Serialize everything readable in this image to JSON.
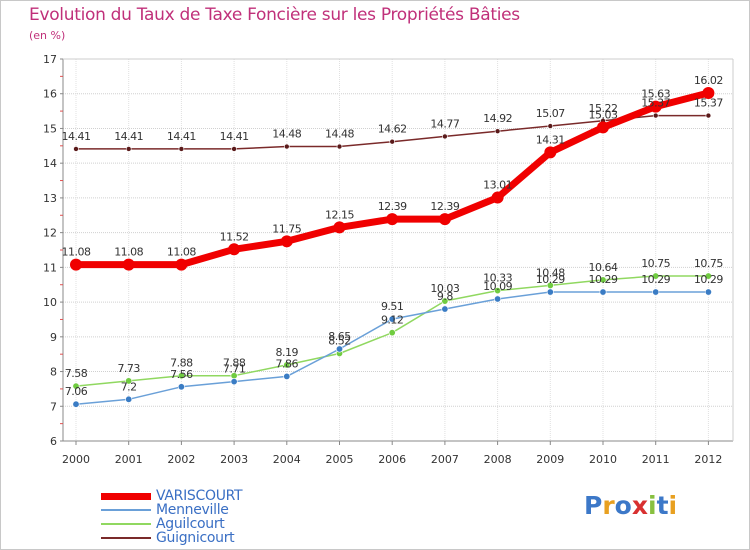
{
  "title": "Evolution du Taux de Taxe Foncière sur les Propriétés Bâties",
  "unit": "(en %)",
  "logo": {
    "letters": [
      "P",
      "r",
      "o",
      "x",
      "i",
      "t",
      "i"
    ],
    "colors": [
      "#3c78c8",
      "#e8a020",
      "#3c78c8",
      "#d83030",
      "#88c040",
      "#3c78c8",
      "#e8a020"
    ]
  },
  "chart_data": {
    "type": "line",
    "title": "Evolution du Taux de Taxe Foncière sur les Propriétés Bâties",
    "xlabel": "",
    "ylabel": "(en %)",
    "ylim": [
      6,
      17
    ],
    "yticks": [
      6,
      7,
      8,
      9,
      10,
      11,
      12,
      13,
      14,
      15,
      16,
      17
    ],
    "categories": [
      "2000",
      "2001",
      "2002",
      "2003",
      "2004",
      "2005",
      "2006",
      "2007",
      "2008",
      "2009",
      "2010",
      "2011",
      "2012"
    ],
    "series": [
      {
        "name": "Guignicourt",
        "color": "#7a2a2a",
        "values": [
          14.41,
          14.41,
          14.41,
          14.41,
          14.48,
          14.48,
          14.62,
          14.77,
          14.92,
          15.07,
          15.22,
          15.37,
          15.37
        ],
        "labels": [
          "14.41",
          "14.41",
          "14.41",
          "14.41",
          "14.48",
          "14.48",
          "14.62",
          "14.77",
          "14.92",
          "15.07",
          "15.22",
          "15.37",
          "15.37"
        ]
      },
      {
        "name": "Aguilcourt",
        "color": "#90d860",
        "values": [
          7.58,
          7.73,
          7.88,
          7.88,
          8.19,
          8.52,
          9.12,
          10.03,
          10.33,
          10.48,
          10.64,
          10.75,
          10.75
        ],
        "labels": [
          "7.58",
          "7.73",
          "7.88",
          "7.88",
          "8.19",
          "8.52",
          "9.12",
          "10.03",
          "10.33",
          "10.48",
          "10.64",
          "10.75",
          "10.75"
        ]
      },
      {
        "name": "Menneville",
        "color": "#6aa0d8",
        "values": [
          7.06,
          7.2,
          7.56,
          7.71,
          7.86,
          8.65,
          9.51,
          9.8,
          10.09,
          10.29,
          10.29,
          10.29,
          10.29
        ],
        "labels": [
          "7.06",
          "7.2",
          "7.56",
          "7.71",
          "7.86",
          "8.65",
          "9.51",
          "9.8",
          "10.09",
          "10.29",
          "10.29",
          "10.29",
          "10.29"
        ]
      },
      {
        "name": "VARISCOURT",
        "color": "#f00000",
        "values": [
          11.08,
          11.08,
          11.08,
          11.52,
          11.75,
          12.15,
          12.39,
          12.39,
          13.01,
          14.31,
          15.03,
          15.63,
          16.02
        ],
        "labels": [
          "11.08",
          "11.08",
          "11.08",
          "11.52",
          "11.75",
          "12.15",
          "12.39",
          "12.39",
          "13.01",
          "14.31",
          "15.03",
          "15.63",
          "16.02"
        ]
      }
    ],
    "legend_order": [
      "VARISCOURT",
      "Menneville",
      "Aguilcourt",
      "Guignicourt"
    ],
    "legend_position": "bottom-left"
  }
}
